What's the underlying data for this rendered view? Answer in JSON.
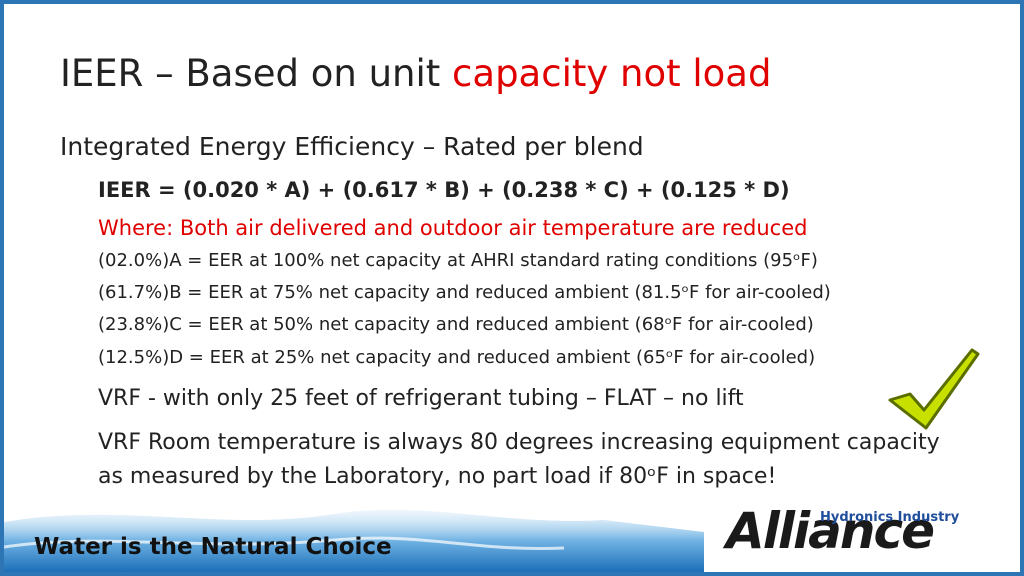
{
  "header": {
    "title_plain": "IEER – Based on unit ",
    "title_red": "capacity not load"
  },
  "body": {
    "subtitle": "Integrated Energy Efficiency – Rated per blend",
    "formula": "IEER = (0.020 * A) + (0.617 * B) + (0.238 * C) + (0.125 * D)",
    "where": "Where: Both air delivered and outdoor air temperature are reduced",
    "definitions": [
      "(02.0%)A = EER at 100% net capacity at AHRI standard rating conditions (95ᵒF)",
      "(61.7%)B = EER at 75% net capacity and reduced ambient (81.5ᵒF for air-cooled)",
      "(23.8%)C = EER at 50% net capacity and reduced ambient (68ᵒF for air-cooled)",
      "(12.5%)D = EER at 25% net capacity and reduced ambient (65ᵒF for air-cooled)"
    ],
    "notes": [
      "VRF - with only 25 feet of refrigerant tubing – FLAT – no lift",
      "VRF Room temperature is always 80 degrees increasing equipment capacity as measured by the Laboratory, no part load if 80ᵒF in space!"
    ]
  },
  "footer": {
    "tagline": "Water is the Natural Choice",
    "logo_top": "Hydronics Industry",
    "logo_main": "Alliance"
  }
}
